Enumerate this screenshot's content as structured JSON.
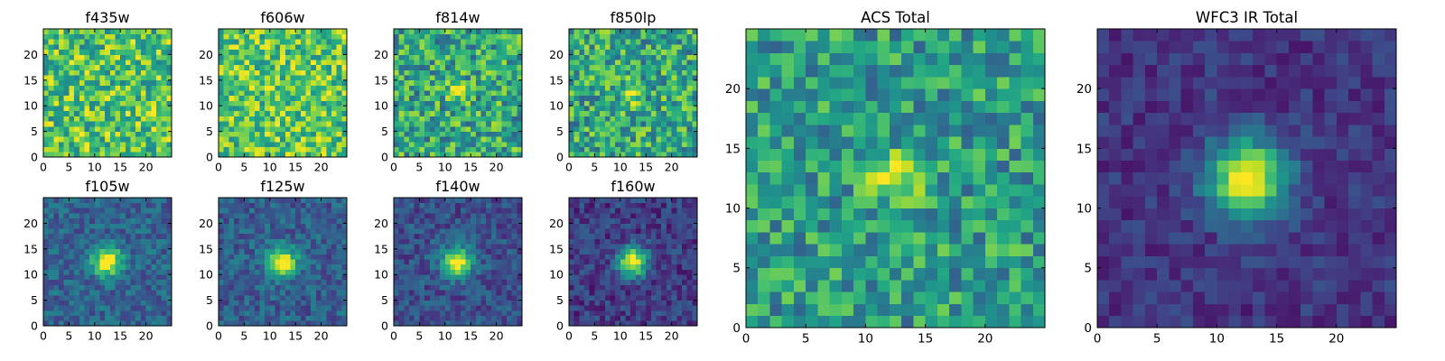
{
  "figure": {
    "type": "image-grid",
    "colormap": "viridis"
  },
  "chart_data": [
    {
      "type": "heatmap",
      "title": "f435w",
      "xlim": [
        0,
        25
      ],
      "ylim": [
        0,
        25
      ],
      "xticks": [
        0,
        5,
        10,
        15,
        20
      ],
      "yticks": [
        0,
        5,
        10,
        15,
        20
      ],
      "source": {
        "base": 0.72,
        "amp": 0.0,
        "noise": 0.28,
        "sigma": 2.5,
        "seed": 11
      }
    },
    {
      "type": "heatmap",
      "title": "f606w",
      "xlim": [
        0,
        25
      ],
      "ylim": [
        0,
        25
      ],
      "xticks": [
        0,
        5,
        10,
        15,
        20
      ],
      "yticks": [
        0,
        5,
        10,
        15,
        20
      ],
      "source": {
        "base": 0.74,
        "amp": 0.0,
        "noise": 0.26,
        "sigma": 2.5,
        "seed": 23
      }
    },
    {
      "type": "heatmap",
      "title": "f814w",
      "xlim": [
        0,
        25
      ],
      "ylim": [
        0,
        25
      ],
      "xticks": [
        0,
        5,
        10,
        15,
        20
      ],
      "yticks": [
        0,
        5,
        10,
        15,
        20
      ],
      "source": {
        "base": 0.6,
        "amp": 0.35,
        "noise": 0.28,
        "sigma": 1.3,
        "seed": 37
      }
    },
    {
      "type": "heatmap",
      "title": "f850lp",
      "xlim": [
        0,
        25
      ],
      "ylim": [
        0,
        25
      ],
      "xticks": [
        0,
        5,
        10,
        15,
        20
      ],
      "yticks": [
        0,
        5,
        10,
        15,
        20
      ],
      "source": {
        "base": 0.6,
        "amp": 0.35,
        "noise": 0.28,
        "sigma": 1.3,
        "seed": 41
      }
    },
    {
      "type": "heatmap",
      "title": "f105w",
      "xlim": [
        0,
        25
      ],
      "ylim": [
        0,
        25
      ],
      "xticks": [
        0,
        5,
        10,
        15,
        20
      ],
      "yticks": [
        0,
        5,
        10,
        15,
        20
      ],
      "source": {
        "base": 0.32,
        "amp": 0.7,
        "noise": 0.14,
        "sigma": 2.0,
        "seed": 53
      }
    },
    {
      "type": "heatmap",
      "title": "f125w",
      "xlim": [
        0,
        25
      ],
      "ylim": [
        0,
        25
      ],
      "xticks": [
        0,
        5,
        10,
        15,
        20
      ],
      "yticks": [
        0,
        5,
        10,
        15,
        20
      ],
      "source": {
        "base": 0.3,
        "amp": 0.72,
        "noise": 0.14,
        "sigma": 2.0,
        "seed": 67
      }
    },
    {
      "type": "heatmap",
      "title": "f140w",
      "xlim": [
        0,
        25
      ],
      "ylim": [
        0,
        25
      ],
      "xticks": [
        0,
        5,
        10,
        15,
        20
      ],
      "yticks": [
        0,
        5,
        10,
        15,
        20
      ],
      "source": {
        "base": 0.25,
        "amp": 0.75,
        "noise": 0.14,
        "sigma": 2.0,
        "seed": 71
      }
    },
    {
      "type": "heatmap",
      "title": "f160w",
      "xlim": [
        0,
        25
      ],
      "ylim": [
        0,
        25
      ],
      "xticks": [
        0,
        5,
        10,
        15,
        20
      ],
      "yticks": [
        0,
        5,
        10,
        15,
        20
      ],
      "source": {
        "base": 0.18,
        "amp": 0.82,
        "noise": 0.14,
        "sigma": 2.0,
        "seed": 83
      }
    },
    {
      "type": "heatmap",
      "title": "ACS Total",
      "xlim": [
        0,
        25
      ],
      "ylim": [
        0,
        25
      ],
      "xticks": [
        0,
        5,
        10,
        15,
        20
      ],
      "yticks": [
        0,
        5,
        10,
        15,
        20
      ],
      "source": {
        "base": 0.55,
        "amp": 0.45,
        "noise": 0.24,
        "sigma": 1.4,
        "seed": 97
      }
    },
    {
      "type": "heatmap",
      "title": "WFC3 IR Total",
      "xlim": [
        0,
        25
      ],
      "ylim": [
        0,
        25
      ],
      "xticks": [
        0,
        5,
        10,
        15,
        20
      ],
      "yticks": [
        0,
        5,
        10,
        15,
        20
      ],
      "source": {
        "base": 0.16,
        "amp": 0.84,
        "noise": 0.1,
        "sigma": 2.3,
        "seed": 101
      }
    }
  ]
}
